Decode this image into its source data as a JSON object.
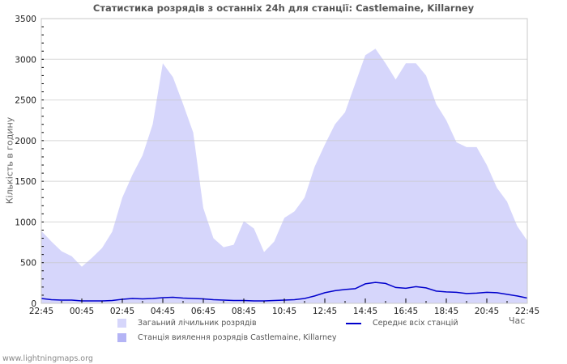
{
  "chart_data": {
    "type": "area",
    "title": "Статистика розрядів з останніх 24h для станції: Castlemaine, Killarney",
    "xlabel": "Час",
    "ylabel": "Кількість в годину",
    "ylim": [
      0,
      3500
    ],
    "yticks": [
      0,
      500,
      1000,
      1500,
      2000,
      2500,
      3000,
      3500
    ],
    "xtick_labels": [
      "22:45",
      "00:45",
      "02:45",
      "04:45",
      "06:45",
      "08:45",
      "10:45",
      "12:45",
      "14:45",
      "16:45",
      "18:45",
      "20:45",
      "22:45"
    ],
    "grid": true,
    "x": [
      "22:45",
      "23:15",
      "23:45",
      "00:15",
      "00:45",
      "01:15",
      "01:45",
      "02:15",
      "02:45",
      "03:15",
      "03:45",
      "04:15",
      "04:45",
      "05:15",
      "05:45",
      "06:15",
      "06:45",
      "07:15",
      "07:45",
      "08:15",
      "08:45",
      "09:15",
      "09:45",
      "10:15",
      "10:45",
      "11:15",
      "11:45",
      "12:15",
      "12:45",
      "13:15",
      "13:45",
      "14:15",
      "14:45",
      "15:15",
      "15:45",
      "16:15",
      "16:45",
      "17:15",
      "17:45",
      "18:15",
      "18:45",
      "19:15",
      "19:45",
      "20:15",
      "20:45",
      "21:15",
      "21:45",
      "22:15",
      "22:45"
    ],
    "series": [
      {
        "name": "Загаьний лічильник розрядів",
        "type": "area",
        "color": "#d6d6fb",
        "values": [
          890,
          760,
          640,
          580,
          450,
          560,
          680,
          880,
          1300,
          1580,
          1820,
          2200,
          2950,
          2780,
          2450,
          2100,
          1170,
          800,
          690,
          720,
          1010,
          920,
          630,
          760,
          1050,
          1130,
          1300,
          1680,
          1950,
          2200,
          2350,
          2700,
          3050,
          3130,
          2950,
          2750,
          2950,
          2950,
          2800,
          2450,
          2250,
          1980,
          1920,
          1920,
          1700,
          1420,
          1250,
          950,
          770
        ]
      },
      {
        "name": "Станція виялення розрядів Castlemaine, Killarney",
        "type": "area",
        "color": "#b4b4f5",
        "values": [
          0,
          0,
          0,
          0,
          0,
          0,
          0,
          0,
          0,
          0,
          0,
          0,
          0,
          0,
          0,
          0,
          0,
          0,
          0,
          0,
          0,
          0,
          0,
          0,
          0,
          0,
          0,
          0,
          0,
          0,
          0,
          0,
          0,
          0,
          0,
          0,
          0,
          0,
          0,
          0,
          0,
          0,
          0,
          0,
          0,
          0,
          0,
          0,
          0
        ]
      },
      {
        "name": "Середнє всіх станцій",
        "type": "line",
        "color": "#0000cc",
        "values": [
          60,
          45,
          40,
          40,
          30,
          30,
          30,
          35,
          50,
          60,
          55,
          60,
          70,
          75,
          65,
          60,
          55,
          45,
          40,
          35,
          35,
          30,
          30,
          35,
          40,
          45,
          60,
          90,
          130,
          155,
          170,
          180,
          240,
          258,
          245,
          195,
          185,
          205,
          190,
          150,
          140,
          135,
          120,
          125,
          135,
          130,
          110,
          90,
          65
        ]
      }
    ],
    "legend_position": "bottom"
  },
  "legend": {
    "total_label": "Загаьний лічильник розрядів",
    "station_label": "Станція виялення розрядів Castlemaine, Killarney",
    "average_label": "Середнє всіх станцій"
  },
  "footer": "www.lightningmaps.org"
}
